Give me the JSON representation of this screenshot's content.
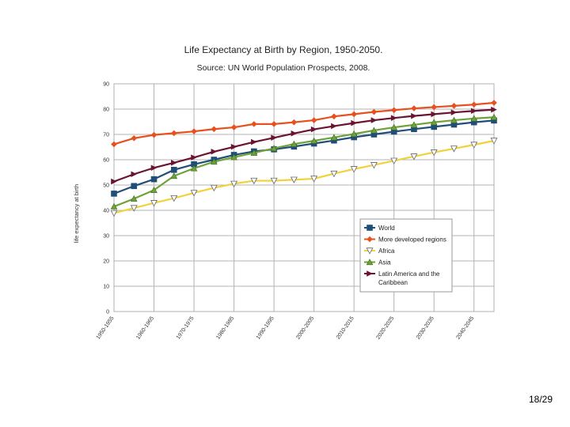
{
  "page": {
    "number": "18/29"
  },
  "colors": {
    "World": "#1f4e79",
    "More developed regions": "#e8501e",
    "Africa": "#f2d13a",
    "Asia": "#6fa33a",
    "Latin America and the Caribbean": "#6b1432"
  },
  "chart_data": {
    "type": "line",
    "title": "Life Expectancy at Birth by Region, 1950-2050.",
    "subtitle": "Source: UN World Population Prospects, 2008.",
    "xlabel": "",
    "ylabel": "life expectancy at birth",
    "ylim": [
      0,
      90
    ],
    "yticks": [
      0,
      10,
      20,
      30,
      40,
      50,
      60,
      70,
      80,
      90
    ],
    "grid": true,
    "legend_position": "bottom-right",
    "categories": [
      "1950-1955",
      "1955-1960",
      "1960-1965",
      "1965-1970",
      "1970-1975",
      "1975-1980",
      "1980-1985",
      "1985-1990",
      "1990-1995",
      "1995-2000",
      "2000-2005",
      "2005-2010",
      "2010-2015",
      "2015-2020",
      "2020-2025",
      "2025-2030",
      "2030-2035",
      "2035-2040",
      "2040-2045",
      "2045-2050"
    ],
    "xtick_labels": [
      "1950-1955",
      "1960-1965",
      "1970-1975",
      "1980-1985",
      "1990-1995",
      "2000-2005",
      "2010-2015",
      "2020-2025",
      "2030-2035",
      "2040-2045"
    ],
    "series": [
      {
        "name": "World",
        "marker": "square",
        "values": [
          46.6,
          49.6,
          52.3,
          56.0,
          58.2,
          60.0,
          61.9,
          63.3,
          64.1,
          65.2,
          66.4,
          67.6,
          68.9,
          70.0,
          71.1,
          72.1,
          73.0,
          73.9,
          74.8,
          75.5
        ]
      },
      {
        "name": "More developed regions",
        "marker": "diamond",
        "values": [
          66.1,
          68.5,
          69.8,
          70.5,
          71.2,
          72.1,
          72.8,
          74.1,
          74.1,
          74.8,
          75.6,
          77.1,
          78.0,
          78.9,
          79.6,
          80.3,
          80.8,
          81.3,
          81.8,
          82.5
        ]
      },
      {
        "name": "Africa",
        "marker": "triangle-down",
        "values": [
          38.9,
          40.9,
          42.9,
          44.8,
          46.9,
          48.9,
          50.5,
          51.7,
          51.7,
          52.1,
          52.5,
          54.5,
          56.3,
          57.9,
          59.6,
          61.3,
          62.9,
          64.4,
          65.9,
          67.5
        ]
      },
      {
        "name": "Asia",
        "marker": "triangle-up",
        "values": [
          41.5,
          44.6,
          48.0,
          53.6,
          56.6,
          59.2,
          61.0,
          62.7,
          64.5,
          66.2,
          67.5,
          68.8,
          70.2,
          71.6,
          72.8,
          73.8,
          74.8,
          75.6,
          76.3,
          76.8
        ]
      },
      {
        "name": "Latin America and the Caribbean",
        "marker": "triangle-right",
        "values": [
          51.4,
          54.3,
          56.8,
          58.8,
          60.9,
          63.2,
          65.1,
          67.0,
          68.7,
          70.4,
          72.0,
          73.3,
          74.5,
          75.6,
          76.5,
          77.3,
          78.0,
          78.7,
          79.3,
          79.8
        ]
      }
    ]
  }
}
